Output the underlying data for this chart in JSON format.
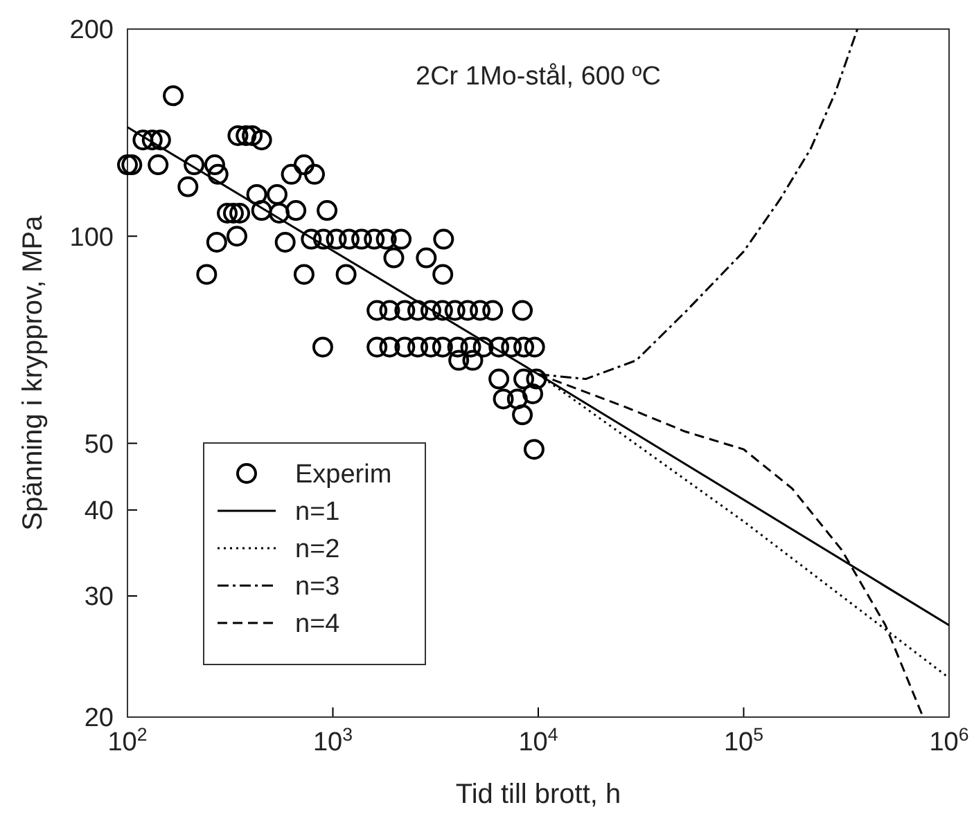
{
  "chart_data": {
    "type": "line",
    "title": "2Cr 1Mo-stål, 600 ºC",
    "xlabel": "Tid till brott, h",
    "ylabel": "Spänning i krypprov, MPa",
    "log": "xy",
    "grid": false,
    "legend": "bottom left",
    "xlim": [
      100,
      1000000
    ],
    "ylim": [
      20,
      200
    ],
    "xticks": [
      {
        "value": 100,
        "label": "10$^{2}$"
      },
      {
        "value": 1000,
        "label": "10$^{3}$"
      },
      {
        "value": 10000,
        "label": "10$^{4}$"
      },
      {
        "value": 100000,
        "label": "10$^{5}$"
      },
      {
        "value": 1000000,
        "label": "10$^{6}$"
      }
    ],
    "yticks": [
      20,
      30,
      40,
      50,
      100,
      200
    ],
    "series": [
      {
        "name": "Experim",
        "type": "scatter",
        "marker": "circle",
        "color": "#000000",
        "x": [
          100,
          105,
          119,
          132,
          145,
          141,
          167,
          197,
          211,
          266,
          276,
          243,
          272,
          306,
          328,
          352,
          341,
          345,
          378,
          405,
          450,
          426,
          450,
          535,
          548,
          586,
          628,
          724,
          814,
          724,
          661,
          937,
          893,
          785,
          900,
          1040,
          1200,
          1380,
          1590,
          1820,
          2150,
          1160,
          1980,
          2850,
          3430,
          3460,
          1640,
          1890,
          2240,
          2590,
          3000,
          3420,
          3930,
          4530,
          5210,
          6000,
          8370,
          1640,
          1890,
          2240,
          2590,
          3000,
          3420,
          4050,
          4690,
          5400,
          6430,
          7400,
          8500,
          9600,
          4100,
          4800,
          6430,
          6760,
          7910,
          8500,
          9800,
          9400,
          8370,
          9540
        ],
        "values": [
          127,
          127,
          138,
          138,
          138,
          127,
          160,
          118,
          127,
          127,
          123,
          88,
          98,
          108,
          108,
          108,
          100,
          140,
          140,
          140,
          138,
          115,
          109,
          115,
          108,
          98,
          123,
          127,
          123,
          88,
          109,
          109,
          69,
          99,
          99,
          99,
          99,
          99,
          99,
          99,
          99,
          88,
          93,
          93,
          88,
          99,
          78,
          78,
          78,
          78,
          78,
          78,
          78,
          78,
          78,
          78,
          78,
          69,
          69,
          69,
          69,
          69,
          69,
          69,
          69,
          69,
          69,
          69,
          69,
          69,
          66,
          66,
          62,
          58,
          58,
          62,
          62,
          59,
          55,
          49
        ]
      },
      {
        "name": "n=1",
        "line_style": "solid",
        "color": "#000000",
        "x": [
          100,
          10000,
          1000000
        ],
        "values": [
          144,
          63,
          27.2
        ]
      },
      {
        "name": "n=2",
        "line_style": "dotted",
        "color": "#000000",
        "x": [
          10000,
          100000,
          1000000
        ],
        "values": [
          63,
          38.5,
          22.8
        ]
      },
      {
        "name": "n=3",
        "line_style": "dashdot",
        "color": "#000000",
        "x": [
          10000,
          17000,
          30000,
          52000,
          100000,
          150000,
          212000,
          280000,
          358000
        ],
        "values": [
          63,
          62,
          66,
          77.6,
          95,
          113,
          134,
          162,
          200
        ]
      },
      {
        "name": "n=4",
        "line_style": "dashed",
        "color": "#000000",
        "x": [
          10000,
          26000,
          52000,
          100000,
          172000,
          300000,
          490000,
          747000
        ],
        "values": [
          63,
          56.6,
          52,
          49,
          43,
          35,
          27.2,
          20
        ]
      }
    ]
  }
}
